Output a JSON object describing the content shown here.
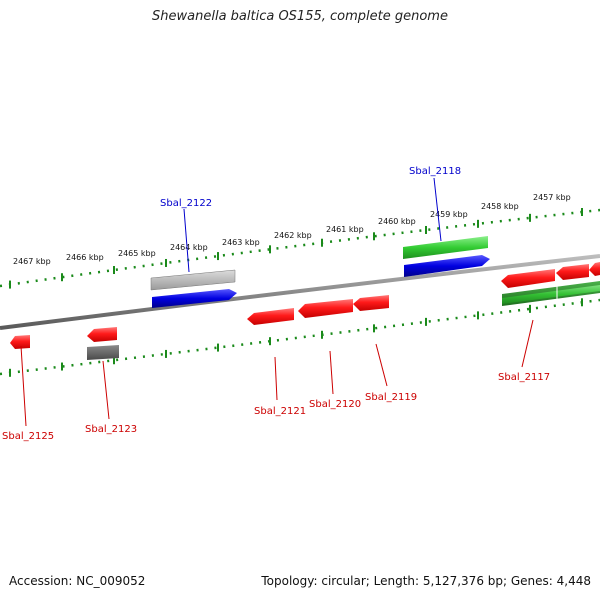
{
  "title": "Shewanella baltica OS155, complete genome",
  "footer": {
    "accession": "Accession: NC_009052",
    "summary": "Topology: circular; Length: 5,127,376 bp; Genes: 4,448"
  },
  "colors": {
    "backbone": "#8a8a8a",
    "scale_ticks": "#1a8a1a",
    "reverse_gene": "#ff1a1a",
    "forward_gene_top": "#33cc33",
    "forward_gene_blue": "#0000e0",
    "gray_gene": "#aaaaaa",
    "dark_gray_gene": "#666666",
    "label_red": "#cc0000",
    "label_blue": "#0000cc"
  },
  "scale_labels": [
    "2467 kbp",
    "2466 kbp",
    "2465 kbp",
    "2464 kbp",
    "2463 kbp",
    "2462 kbp",
    "2461 kbp",
    "2460 kbp",
    "2459 kbp",
    "2458 kbp",
    "2457 kbp"
  ],
  "gene_labels": {
    "top": [
      "Sbal_2122",
      "Sbal_2118"
    ],
    "bottom": [
      "Sbal_2125",
      "Sbal_2123",
      "Sbal_2121",
      "Sbal_2120",
      "Sbal_2119",
      "Sbal_2117"
    ]
  }
}
